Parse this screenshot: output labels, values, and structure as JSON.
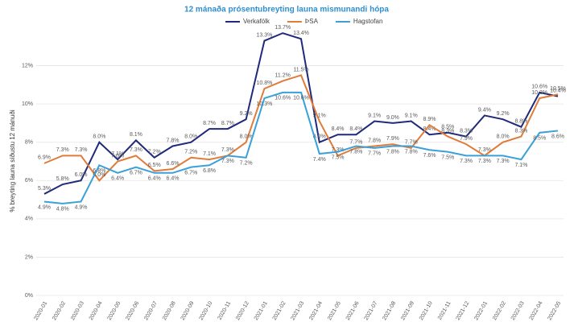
{
  "chart_data": {
    "type": "line",
    "title": "12 mánaða prósentubreyting launa mismunandi hópa",
    "y_label": "% breyting launa síðustu 12 mánuði",
    "categories": [
      "2020-01",
      "2020-02",
      "2020-03",
      "2020-04",
      "2020-05",
      "2020-06",
      "2020-07",
      "2020-08",
      "2020-09",
      "2020-10",
      "2020-11",
      "2020-12",
      "2021-01",
      "2021-02",
      "2021-03",
      "2021-04",
      "2021-05",
      "2021-06",
      "2021-07",
      "2021-08",
      "2021-09",
      "2021-10",
      "2021-11",
      "2021-12",
      "2022-01",
      "2022-02",
      "2022-03",
      "2022-04",
      "2022-05"
    ],
    "series": [
      {
        "name": "Verkafólk",
        "color": "#1f2a7a",
        "values": [
          5.3,
          5.8,
          6.0,
          8.0,
          7.1,
          8.1,
          7.2,
          7.8,
          8.0,
          8.7,
          8.7,
          9.2,
          13.3,
          13.7,
          13.4,
          8.0,
          8.4,
          8.4,
          9.1,
          9.0,
          9.1,
          8.4,
          8.5,
          8.3,
          9.4,
          9.2,
          8.8,
          10.6,
          10.4
        ],
        "value_labels": [
          "5.3%",
          "5.8%",
          "6.0%",
          "8.0%",
          "7.1%",
          "8.1%",
          "7.2%",
          "7.8%",
          "8.0%",
          "8.7%",
          "8.7%",
          "9.2%",
          "13.3%",
          "13.7%",
          "13.4%",
          "8.0%",
          "8.4%",
          "8.4%",
          "9.1%",
          "9.0%",
          "9.1%",
          "8.4%",
          "8.5%",
          "8.3%",
          "9.4%",
          "9.2%",
          "8.8%",
          "10.6%",
          "10.4%"
        ]
      },
      {
        "name": "ÞSA",
        "color": "#e07b39",
        "values": [
          6.9,
          7.3,
          7.3,
          6.0,
          7.0,
          7.3,
          6.5,
          6.6,
          7.2,
          7.1,
          7.3,
          8.0,
          10.8,
          11.2,
          11.5,
          9.1,
          7.3,
          7.7,
          7.8,
          7.9,
          7.7,
          8.9,
          8.3,
          7.9,
          7.3,
          8.0,
          8.3,
          10.3,
          10.5
        ],
        "value_labels": [
          "6.9%",
          "7.3%",
          "7.3%",
          "6.0%",
          "7.0%",
          "7.3%",
          "6.5%",
          "6.6%",
          "7.2%",
          "7.1%",
          "7.3%",
          "8.0%",
          "10.8%",
          "11.2%",
          "11.5%",
          "9.1%",
          "7.3%",
          "7.7%",
          "7.8%",
          "7.9%",
          "7.7%",
          "8.9%",
          "8.3%",
          "7.9%",
          "7.3%",
          "8.0%",
          "8.3%",
          "10.3%",
          "10.5%"
        ]
      },
      {
        "name": "Hagstofan",
        "color": "#3aa0d8",
        "values": [
          4.9,
          4.8,
          4.9,
          6.8,
          6.4,
          6.7,
          6.4,
          6.4,
          6.7,
          6.8,
          7.3,
          7.2,
          10.3,
          10.6,
          10.6,
          7.4,
          7.5,
          7.8,
          7.7,
          7.8,
          7.8,
          7.6,
          7.5,
          7.3,
          7.3,
          7.3,
          7.1,
          8.5,
          8.6
        ],
        "value_labels": [
          "4.9%",
          "4.8%",
          "4.9%",
          "6.8%",
          "6.4%",
          "6.7%",
          "6.4%",
          "6.4%",
          "6.7%",
          "6.8%",
          "7.3%",
          "7.2%",
          "10.3%",
          "10.6%",
          "10.6%",
          "7.4%",
          "7.5%",
          "7.8%",
          "7.7%",
          "7.8%",
          "7.8%",
          "7.6%",
          "7.5%",
          "7.3%",
          "7.3%",
          "7.3%",
          "7.1%",
          "8.5%",
          "8.6%"
        ]
      }
    ],
    "ylim": [
      0,
      14
    ],
    "yticks": [
      {
        "value": 0,
        "label": "0%"
      },
      {
        "value": 2,
        "label": "2%"
      },
      {
        "value": 4,
        "label": "4%"
      },
      {
        "value": 6,
        "label": "6%"
      },
      {
        "value": 8,
        "label": "8%"
      },
      {
        "value": 10,
        "label": "10%"
      },
      {
        "value": 12,
        "label": "12%"
      }
    ],
    "grid": true,
    "legend": "top"
  }
}
